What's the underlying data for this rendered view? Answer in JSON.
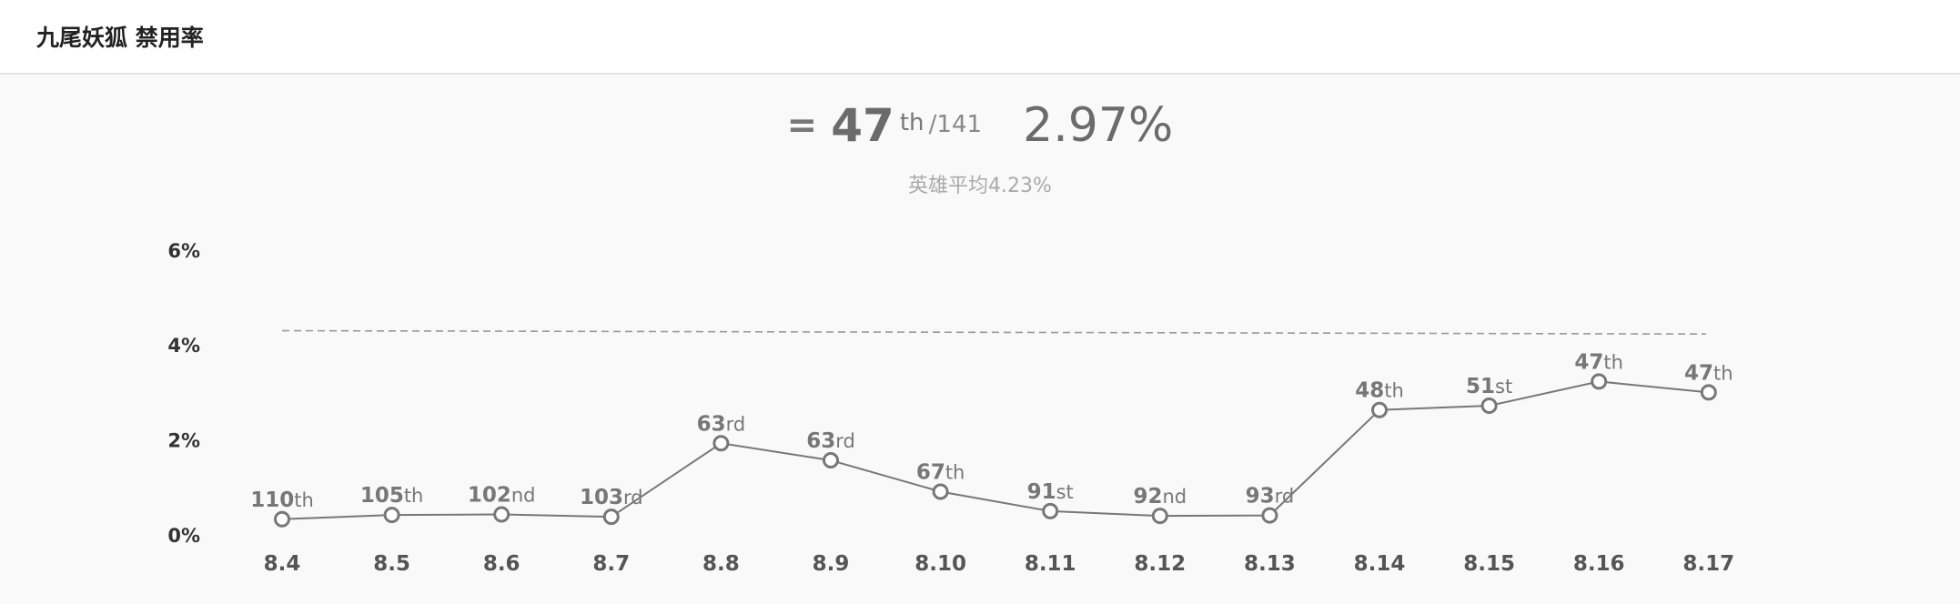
{
  "header": {
    "title": "九尾妖狐 禁用率"
  },
  "summary": {
    "trend_symbol": "=",
    "rank": "47",
    "rank_suffix": "th",
    "total": "/141",
    "rate": "2.97%",
    "average": "英雄平均4.23%"
  },
  "chart_data": {
    "type": "line",
    "categories": [
      "8.4",
      "8.5",
      "8.6",
      "8.7",
      "8.8",
      "8.9",
      "8.10",
      "8.11",
      "8.12",
      "8.13",
      "8.14",
      "8.15",
      "8.16",
      "8.17"
    ],
    "series": [
      {
        "values": [
          0.33,
          0.42,
          0.43,
          0.38,
          1.93,
          1.57,
          0.91,
          0.5,
          0.4,
          0.41,
          2.63,
          2.72,
          3.23,
          3.0
        ]
      }
    ],
    "point_labels": [
      {
        "num": "110",
        "suffix": "th"
      },
      {
        "num": "105",
        "suffix": "th"
      },
      {
        "num": "102",
        "suffix": "nd"
      },
      {
        "num": "103",
        "suffix": "rd"
      },
      {
        "num": "63",
        "suffix": "rd"
      },
      {
        "num": "63",
        "suffix": "rd"
      },
      {
        "num": "67",
        "suffix": "th"
      },
      {
        "num": "91",
        "suffix": "st"
      },
      {
        "num": "92",
        "suffix": "nd"
      },
      {
        "num": "93",
        "suffix": "rd"
      },
      {
        "num": "48",
        "suffix": "th"
      },
      {
        "num": "51",
        "suffix": "st"
      },
      {
        "num": "47",
        "suffix": "th"
      },
      {
        "num": "47",
        "suffix": "th"
      }
    ],
    "reference_line": {
      "start": 4.3,
      "end": 4.23,
      "style": "dashed"
    },
    "y_ticks": [
      "0%",
      "2%",
      "4%",
      "6%"
    ],
    "y_tick_values": [
      0,
      2,
      4,
      6
    ],
    "ylim": [
      0,
      6
    ],
    "grid": false,
    "colors": {
      "line": "#777777",
      "marker_fill": "#ffffff",
      "reference": "#999999"
    }
  }
}
